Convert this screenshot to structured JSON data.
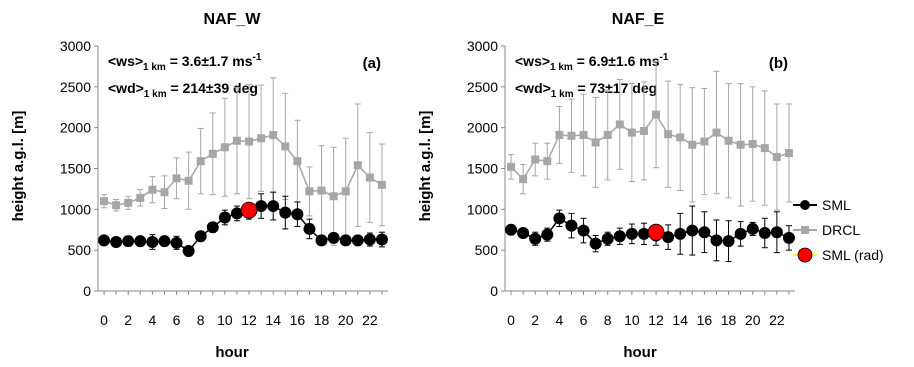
{
  "figure": {
    "ylabel": "height a.g.l. [m]",
    "xlabel": "hour",
    "legend": [
      "SML",
      "DRCL",
      "SML (rad)"
    ]
  },
  "colors": {
    "sml": "#000000",
    "drcl": "#a6a6a6",
    "sml_rad": "#ff0000"
  },
  "chart_data": [
    {
      "type": "line",
      "title": "NAF_W",
      "panel_label": "(a)",
      "annotation_ws": {
        "pre": "<ws>",
        "sub": "1 km",
        "value": " = 3.6±1.7 ms",
        "sup": "-1"
      },
      "annotation_wd": {
        "pre": "<wd>",
        "sub": "1 km",
        "value": " = 214±39 deg"
      },
      "xlabel": "hour",
      "ylabel": "height a.g.l. [m]",
      "xlim": [
        -0.5,
        23.5
      ],
      "ylim": [
        0,
        3000
      ],
      "yticks": [
        0,
        500,
        1000,
        1500,
        2000,
        2500,
        3000
      ],
      "xticks": [
        0,
        2,
        4,
        6,
        8,
        10,
        12,
        14,
        16,
        18,
        20,
        22
      ],
      "series": [
        {
          "name": "SML",
          "x": [
            0,
            1,
            2,
            3,
            4,
            5,
            6,
            7,
            8,
            9,
            10,
            11,
            12,
            13,
            14,
            15,
            16,
            17,
            18,
            19,
            20,
            21,
            22,
            23
          ],
          "y": [
            620,
            600,
            610,
            610,
            600,
            610,
            590,
            490,
            670,
            780,
            900,
            950,
            980,
            1040,
            1040,
            960,
            940,
            760,
            620,
            650,
            620,
            620,
            630,
            630
          ],
          "err": [
            60,
            60,
            60,
            60,
            90,
            60,
            80,
            60,
            60,
            60,
            90,
            90,
            100,
            150,
            170,
            200,
            150,
            120,
            60,
            60,
            60,
            60,
            80,
            90
          ]
        },
        {
          "name": "DRCL",
          "x": [
            0,
            1,
            2,
            3,
            4,
            5,
            6,
            7,
            8,
            9,
            10,
            11,
            12,
            13,
            14,
            15,
            16,
            17,
            18,
            19,
            20,
            21,
            22,
            23
          ],
          "y": [
            1100,
            1050,
            1080,
            1140,
            1240,
            1210,
            1380,
            1350,
            1590,
            1680,
            1760,
            1840,
            1830,
            1870,
            1910,
            1770,
            1590,
            1220,
            1230,
            1160,
            1220,
            1540,
            1390,
            1300
          ],
          "err": [
            80,
            70,
            80,
            100,
            160,
            200,
            250,
            350,
            400,
            500,
            600,
            650,
            700,
            650,
            700,
            650,
            500,
            300,
            550,
            600,
            650,
            750,
            550,
            500
          ]
        },
        {
          "name": "SML (rad)",
          "x": [
            12
          ],
          "y": [
            990
          ],
          "err": [
            0
          ]
        }
      ]
    },
    {
      "type": "line",
      "title": "NAF_E",
      "panel_label": "(b)",
      "annotation_ws": {
        "pre": "<ws>",
        "sub": "1 km",
        "value": " = 6.9±1.6 ms",
        "sup": "-1"
      },
      "annotation_wd": {
        "pre": "<wd>",
        "sub": "1 km",
        "value": " = 73±17 deg"
      },
      "xlabel": "hour",
      "ylabel": "height a.g.l. [m]",
      "xlim": [
        -0.5,
        23.5
      ],
      "ylim": [
        0,
        3000
      ],
      "yticks": [
        0,
        500,
        1000,
        1500,
        2000,
        2500,
        3000
      ],
      "xticks": [
        0,
        2,
        4,
        6,
        8,
        10,
        12,
        14,
        16,
        18,
        20,
        22
      ],
      "series": [
        {
          "name": "SML",
          "x": [
            0,
            1,
            2,
            3,
            4,
            5,
            6,
            7,
            8,
            9,
            10,
            11,
            12,
            13,
            14,
            15,
            16,
            17,
            18,
            19,
            20,
            21,
            22,
            23
          ],
          "y": [
            750,
            710,
            640,
            690,
            890,
            800,
            740,
            580,
            640,
            670,
            700,
            700,
            680,
            660,
            700,
            740,
            720,
            620,
            610,
            700,
            760,
            710,
            720,
            650
          ],
          "err": [
            60,
            60,
            80,
            80,
            100,
            150,
            150,
            100,
            80,
            100,
            120,
            130,
            120,
            150,
            250,
            300,
            250,
            250,
            250,
            150,
            80,
            180,
            250,
            150
          ]
        },
        {
          "name": "DRCL",
          "x": [
            0,
            1,
            2,
            3,
            4,
            5,
            6,
            7,
            8,
            9,
            10,
            11,
            12,
            13,
            14,
            15,
            16,
            17,
            18,
            19,
            20,
            21,
            22,
            23
          ],
          "y": [
            1520,
            1370,
            1610,
            1590,
            1910,
            1900,
            1910,
            1820,
            1910,
            2040,
            1940,
            1960,
            2160,
            1920,
            1880,
            1790,
            1830,
            1940,
            1840,
            1790,
            1800,
            1750,
            1640,
            1690
          ],
          "err": [
            150,
            180,
            200,
            220,
            350,
            450,
            500,
            550,
            550,
            550,
            600,
            600,
            650,
            650,
            650,
            700,
            650,
            750,
            700,
            750,
            700,
            700,
            650,
            600
          ]
        },
        {
          "name": "SML (rad)",
          "x": [
            12
          ],
          "y": [
            720
          ],
          "err": [
            0
          ]
        }
      ]
    }
  ]
}
